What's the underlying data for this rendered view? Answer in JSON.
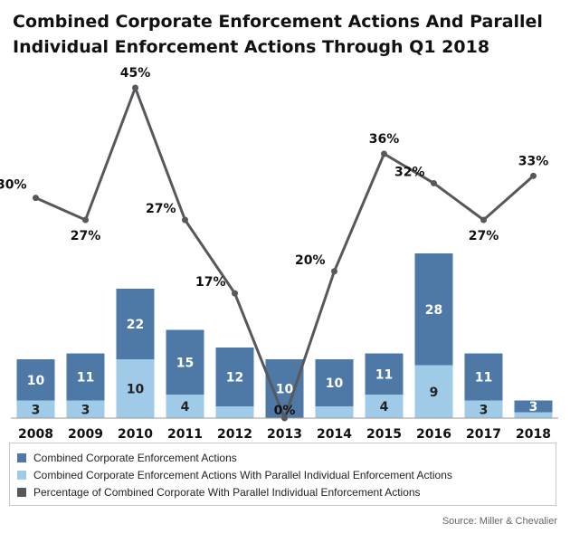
{
  "title_line1": "Combined Corporate Enforcement Actions And Parallel",
  "title_line2": "Individual Enforcement Actions Through Q1 2018",
  "source": "Source: Miller & Chevalier",
  "colors": {
    "combined": "#4e79a7",
    "parallel": "#a0cbe8",
    "percentage": "#57585b"
  },
  "chart_data": {
    "type": "bar",
    "stacked": true,
    "categories": [
      "2008",
      "2009",
      "2010",
      "2011",
      "2012",
      "2013",
      "2014",
      "2015",
      "2016",
      "2017",
      "2018"
    ],
    "series": [
      {
        "name": "Combined Corporate Enforcement Actions With Parallel Individual Enforcement Actions",
        "values": [
          3,
          3,
          10,
          4,
          2,
          0,
          2,
          4,
          9,
          3,
          1
        ],
        "labels": [
          "3",
          "3",
          "10",
          "4",
          "",
          "",
          "",
          "4",
          "9",
          "3",
          ""
        ]
      },
      {
        "name": "Combined Corporate Enforcement Actions",
        "values": [
          10,
          11,
          22,
          15,
          12,
          10,
          10,
          11,
          28,
          11,
          3
        ],
        "labels": [
          "10",
          "11",
          "22",
          "15",
          "12",
          "10",
          "10",
          "11",
          "28",
          "11",
          "3"
        ]
      },
      {
        "name": "Percentage of Combined Corporate With Parallel Individual Enforcement Actions",
        "type": "line",
        "values": [
          30,
          27,
          45,
          27,
          17,
          0,
          20,
          36,
          32,
          27,
          33
        ],
        "labels": [
          "30%",
          "27%",
          "45%",
          "27%",
          "17%",
          "0%",
          "20%",
          "36%",
          "32%",
          "27%",
          "33%"
        ]
      }
    ],
    "ylim_bars": [
      0,
      40
    ],
    "ylim_line": [
      0,
      45
    ],
    "grid": false,
    "legend_position": "bottom"
  }
}
